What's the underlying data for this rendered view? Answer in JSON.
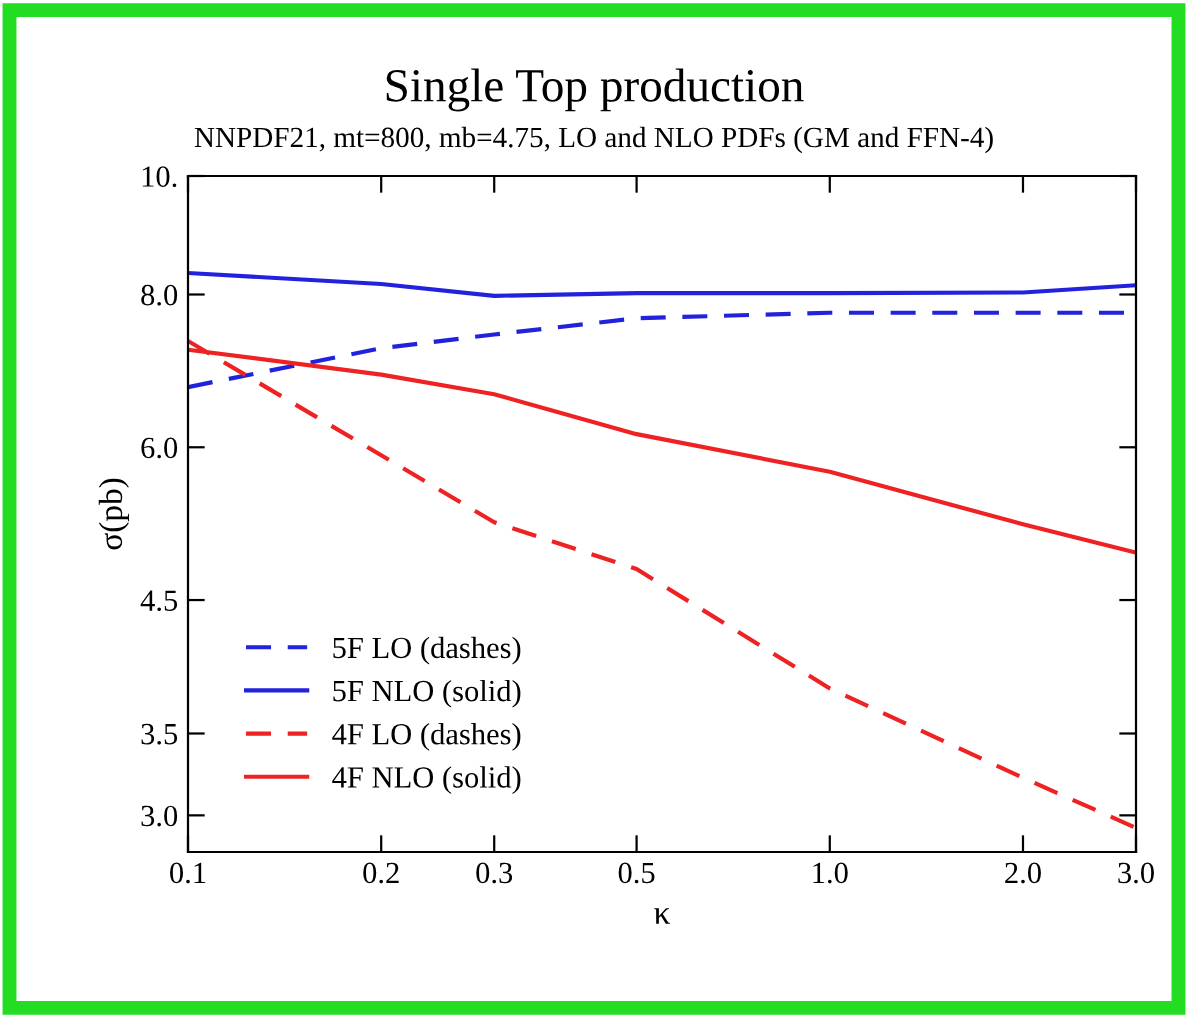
{
  "chart_data": {
    "type": "line",
    "title": "Single Top production",
    "subtitle": "NNPDF21, mt=800, mb=4.75, LO and NLO PDFs (GM and FFN-4)",
    "xlabel": "κ",
    "ylabel": "σ(pb)",
    "x": [
      0.1,
      0.2,
      0.3,
      0.5,
      1.0,
      2.0,
      3.0
    ],
    "series": [
      {
        "name": "5F LO (dashes)",
        "color": "#2222dd",
        "line_style": "dashed",
        "values": [
          6.72,
          7.23,
          7.42,
          7.65,
          7.73,
          7.73,
          7.73
        ]
      },
      {
        "name": "5F NLO (solid)",
        "color": "#2222dd",
        "line_style": "solid",
        "values": [
          8.33,
          8.16,
          7.98,
          8.02,
          8.02,
          8.03,
          8.14
        ]
      },
      {
        "name": "4F LO (dashes)",
        "color": "#ee2222",
        "line_style": "dashed",
        "values": [
          7.33,
          5.91,
          5.21,
          4.77,
          3.81,
          3.22,
          2.93
        ]
      },
      {
        "name": "4F NLO (solid)",
        "color": "#ee2222",
        "line_style": "solid",
        "values": [
          7.21,
          6.88,
          6.63,
          6.15,
          5.73,
          5.19,
          4.92
        ]
      }
    ],
    "log": "xy",
    "xlim": [
      0.1,
      3.0
    ],
    "ylim": [
      2.8,
      10
    ],
    "xticks": [
      0.1,
      0.2,
      0.3,
      0.5,
      {
        "value": 1,
        "label": "1.0"
      },
      {
        "value": 2,
        "label": "2.0"
      },
      {
        "value": 3,
        "label": "3.0"
      }
    ],
    "yticks": [
      {
        "value": 3,
        "label": "3.0"
      },
      3.5,
      4.5,
      {
        "value": 6,
        "label": "6.0"
      },
      {
        "value": 8,
        "label": "8.0"
      },
      {
        "value": 10,
        "label": "10."
      }
    ],
    "grid": false,
    "legend": "bottom left"
  }
}
